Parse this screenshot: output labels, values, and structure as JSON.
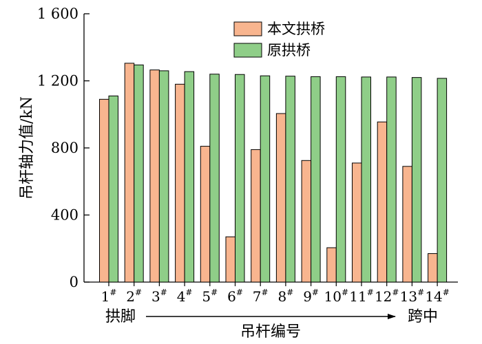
{
  "chart_data": {
    "type": "bar",
    "ylabel": "吊杆轴力值/kN",
    "xlabel": "吊杆编号",
    "x_start_label": "拱脚",
    "x_end_label": "跨中",
    "ylim": [
      0,
      1600
    ],
    "yticks": [
      0,
      400,
      800,
      1200,
      1600
    ],
    "ytick_labels": [
      "0",
      "400",
      "800",
      "1 200",
      "1 600"
    ],
    "grid": false,
    "legend_position": "top-right",
    "categories": [
      "1",
      "2",
      "3",
      "4",
      "5",
      "6",
      "7",
      "8",
      "9",
      "10",
      "11",
      "12",
      "13",
      "14"
    ],
    "category_superscript": "#",
    "series": [
      {
        "name": "本文拱桥",
        "color": "#f8b58f",
        "values": [
          1090,
          1305,
          1265,
          1180,
          810,
          270,
          790,
          1005,
          725,
          205,
          710,
          955,
          690,
          170
        ]
      },
      {
        "name": "原拱桥",
        "color": "#8fce88",
        "values": [
          1110,
          1295,
          1260,
          1255,
          1240,
          1238,
          1230,
          1228,
          1225,
          1225,
          1223,
          1223,
          1220,
          1215
        ]
      }
    ]
  }
}
